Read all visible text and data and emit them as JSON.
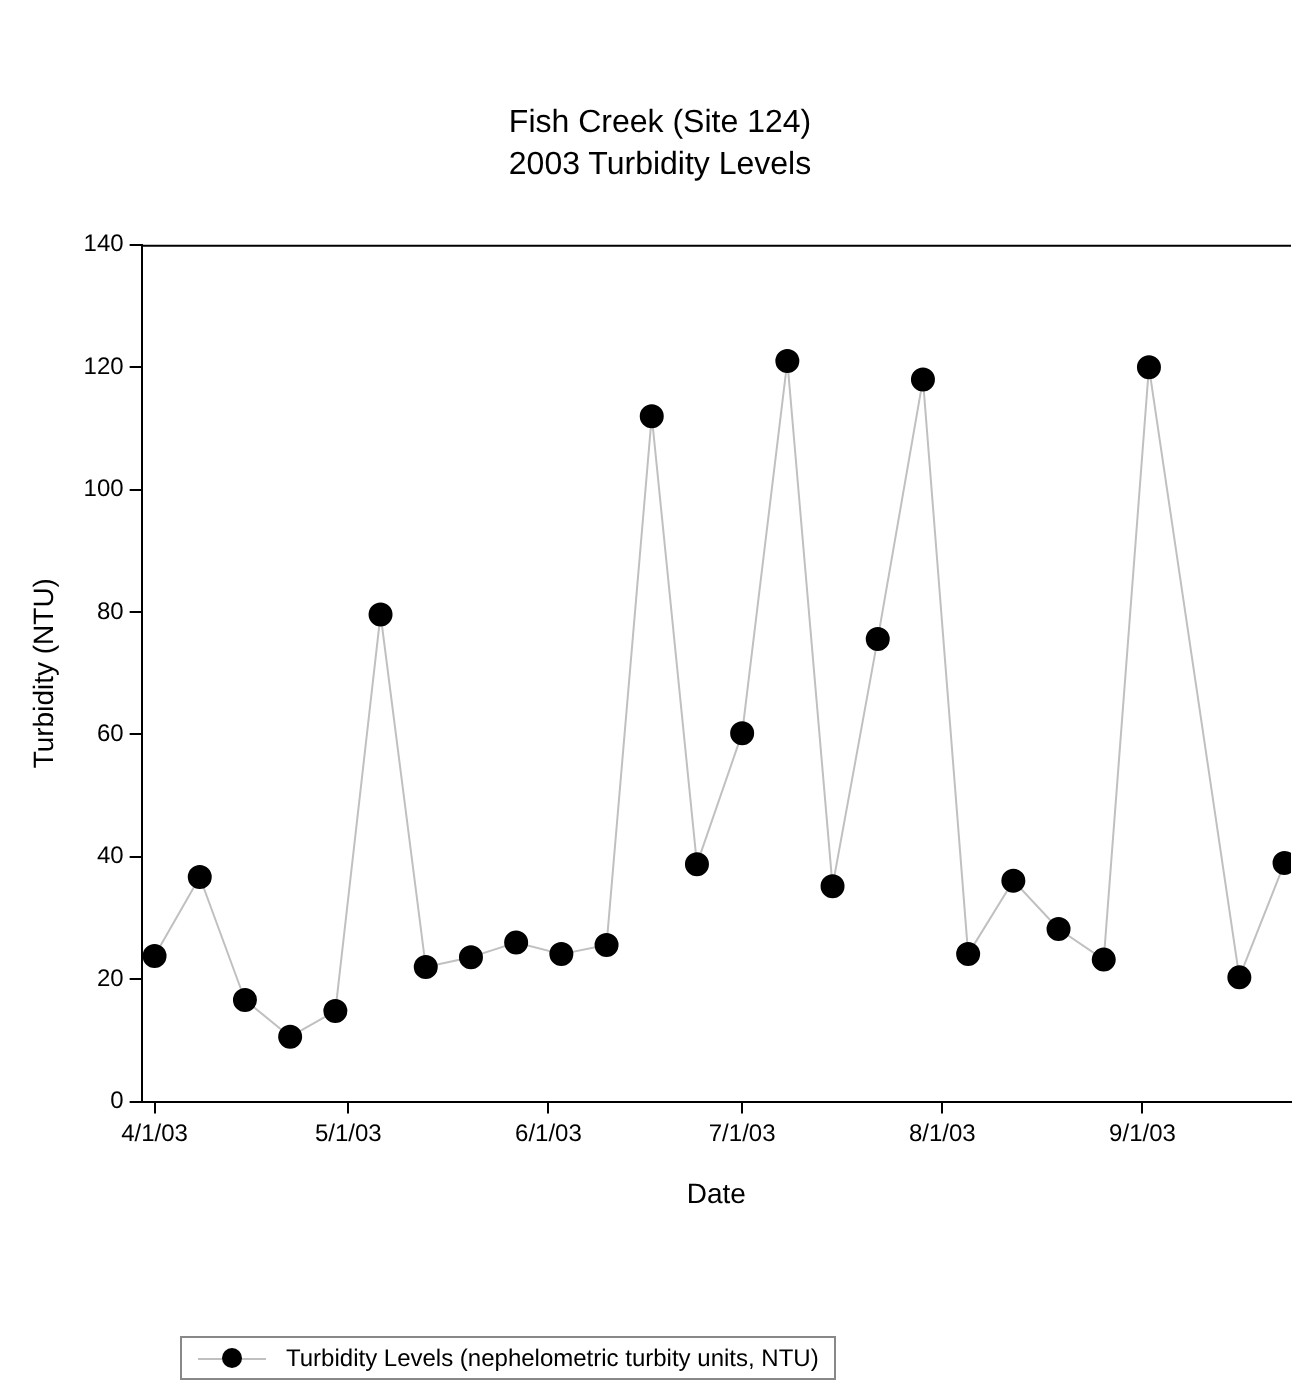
{
  "chart_data": {
    "type": "line",
    "title": "Fish Creek (Site 124)",
    "subtitle": "2003 Turbidity Levels",
    "xlabel": "Date",
    "ylabel": "Turbidity (NTU)",
    "x": [
      "2003-04-01",
      "2003-04-08",
      "2003-04-15",
      "2003-04-22",
      "2003-04-29",
      "2003-05-06",
      "2003-05-13",
      "2003-05-20",
      "2003-05-27",
      "2003-06-03",
      "2003-06-10",
      "2003-06-17",
      "2003-06-24",
      "2003-07-01",
      "2003-07-08",
      "2003-07-15",
      "2003-07-22",
      "2003-07-29",
      "2003-08-05",
      "2003-08-12",
      "2003-08-19",
      "2003-08-26",
      "2003-09-02",
      "2003-09-16",
      "2003-09-23"
    ],
    "series": [
      {
        "name": "Turbidity Levels (nephelometric turbity units, NTU)",
        "color": "#000000",
        "values": [
          23.8,
          36.7,
          16.6,
          10.6,
          14.8,
          79.6,
          22.0,
          23.6,
          26.0,
          24.1,
          25.6,
          112,
          38.8,
          60.2,
          121,
          35.2,
          75.6,
          118,
          24.1,
          36.1,
          28.2,
          23.2,
          120,
          20.3,
          39.0
        ]
      }
    ],
    "xlim": [
      "2003-03-30",
      "2003-09-24"
    ],
    "xticks": [
      {
        "value": "2003-04-01",
        "label": "4/1/03"
      },
      {
        "value": "2003-05-01",
        "label": "5/1/03"
      },
      {
        "value": "2003-06-01",
        "label": "6/1/03"
      },
      {
        "value": "2003-07-01",
        "label": "7/1/03"
      },
      {
        "value": "2003-08-01",
        "label": "8/1/03"
      },
      {
        "value": "2003-09-01",
        "label": "9/1/03"
      }
    ],
    "ylim": [
      0,
      140
    ],
    "yticks": [
      0,
      20,
      40,
      60,
      80,
      100,
      120,
      140
    ],
    "grid": false,
    "legend": "bottom",
    "marker": "circle",
    "line_style": "solid"
  }
}
